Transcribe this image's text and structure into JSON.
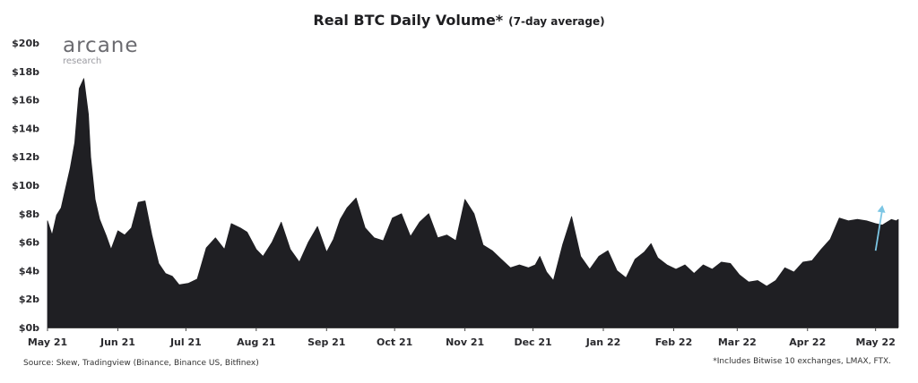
{
  "chart_data": {
    "type": "area",
    "title": "Real BTC Daily Volume*",
    "subtitle": "(7-day average)",
    "xlabel": "",
    "ylabel": "",
    "ylim": [
      0,
      20
    ],
    "y_ticks": [
      "$0b",
      "$2b",
      "$4b",
      "$6b",
      "$8b",
      "$10b",
      "$12b",
      "$14b",
      "$16b",
      "$18b",
      "$20b"
    ],
    "x_ticks": [
      "May 21",
      "Jun 21",
      "Jul 21",
      "Aug 21",
      "Sep 21",
      "Oct 21",
      "Nov 21",
      "Dec 21",
      "Jan 22",
      "Feb 22",
      "Mar 22",
      "Apr 22",
      "May 22"
    ],
    "grid": false,
    "colors": {
      "area": "#1f1f23",
      "arrow": "#7cc6e4"
    },
    "series": [
      {
        "x": [
          "2021-05-01",
          "2021-05-03",
          "2021-05-05",
          "2021-05-07",
          "2021-05-09",
          "2021-05-11",
          "2021-05-13",
          "2021-05-15",
          "2021-05-17",
          "2021-05-19",
          "2021-05-20",
          "2021-05-22",
          "2021-05-24",
          "2021-05-27",
          "2021-05-29",
          "2021-06-01",
          "2021-06-04",
          "2021-06-07",
          "2021-06-10",
          "2021-06-13",
          "2021-06-16",
          "2021-06-19",
          "2021-06-22",
          "2021-06-25",
          "2021-06-28",
          "2021-07-02",
          "2021-07-06",
          "2021-07-10",
          "2021-07-14",
          "2021-07-18",
          "2021-07-21",
          "2021-07-25",
          "2021-07-28",
          "2021-08-01",
          "2021-08-04",
          "2021-08-08",
          "2021-08-12",
          "2021-08-16",
          "2021-08-20",
          "2021-08-24",
          "2021-08-28",
          "2021-09-01",
          "2021-09-04",
          "2021-09-07",
          "2021-09-10",
          "2021-09-14",
          "2021-09-18",
          "2021-09-22",
          "2021-09-26",
          "2021-09-30",
          "2021-10-04",
          "2021-10-08",
          "2021-10-12",
          "2021-10-16",
          "2021-10-20",
          "2021-10-24",
          "2021-10-28",
          "2021-11-01",
          "2021-11-05",
          "2021-11-09",
          "2021-11-13",
          "2021-11-17",
          "2021-11-21",
          "2021-11-25",
          "2021-11-29",
          "2021-12-02",
          "2021-12-04",
          "2021-12-07",
          "2021-12-10",
          "2021-12-14",
          "2021-12-18",
          "2021-12-22",
          "2021-12-26",
          "2021-12-30",
          "2022-01-03",
          "2022-01-07",
          "2022-01-11",
          "2022-01-15",
          "2022-01-19",
          "2022-01-22",
          "2022-01-25",
          "2022-01-29",
          "2022-02-02",
          "2022-02-06",
          "2022-02-10",
          "2022-02-14",
          "2022-02-18",
          "2022-02-22",
          "2022-02-26",
          "2022-03-02",
          "2022-03-06",
          "2022-03-10",
          "2022-03-14",
          "2022-03-18",
          "2022-03-22",
          "2022-03-26",
          "2022-03-30",
          "2022-04-03",
          "2022-04-07",
          "2022-04-11",
          "2022-04-15",
          "2022-04-19",
          "2022-04-23",
          "2022-04-27",
          "2022-05-01",
          "2022-05-04",
          "2022-05-06",
          "2022-05-08",
          "2022-05-10",
          "2022-05-11"
        ],
        "values": [
          7.5,
          6.5,
          7.9,
          8.4,
          9.8,
          11.2,
          13.0,
          16.8,
          17.5,
          15.0,
          12.0,
          9.0,
          7.6,
          6.4,
          5.5,
          6.8,
          6.5,
          7.0,
          8.8,
          8.9,
          6.5,
          4.5,
          3.8,
          3.6,
          3.0,
          3.1,
          3.4,
          5.6,
          6.3,
          5.5,
          7.3,
          7.0,
          6.7,
          5.5,
          5.0,
          6.0,
          7.4,
          5.5,
          4.6,
          6.0,
          7.1,
          5.3,
          6.2,
          7.6,
          8.4,
          9.1,
          7.0,
          6.3,
          6.1,
          7.7,
          8.0,
          6.4,
          7.4,
          8.0,
          6.3,
          6.5,
          6.1,
          9.0,
          8.0,
          5.8,
          5.4,
          4.8,
          4.2,
          4.4,
          4.2,
          4.4,
          5.0,
          3.9,
          3.3,
          5.8,
          7.8,
          5.0,
          4.1,
          5.0,
          5.4,
          4.0,
          3.5,
          4.8,
          5.3,
          5.9,
          4.9,
          4.4,
          4.1,
          4.4,
          3.8,
          4.4,
          4.1,
          4.6,
          4.5,
          3.7,
          3.2,
          3.3,
          2.9,
          3.3,
          4.2,
          3.9,
          4.6,
          4.7,
          5.5,
          6.2,
          7.7,
          7.5,
          7.6,
          7.5,
          7.3,
          7.2,
          7.4,
          7.6,
          7.5,
          7.6
        ]
      }
    ],
    "arrow": {
      "from": {
        "x": "2022-05-01",
        "y": 5.4
      },
      "to": {
        "x": "2022-05-04",
        "y": 8.6
      }
    }
  },
  "branding": {
    "logo_main": "arcane",
    "logo_sub": "research"
  },
  "footer": {
    "source": "Source: Skew, Tradingview (Binance, Binance US, Bitfinex)",
    "note": "*Includes Bitwise 10 exchanges, LMAX, FTX."
  }
}
